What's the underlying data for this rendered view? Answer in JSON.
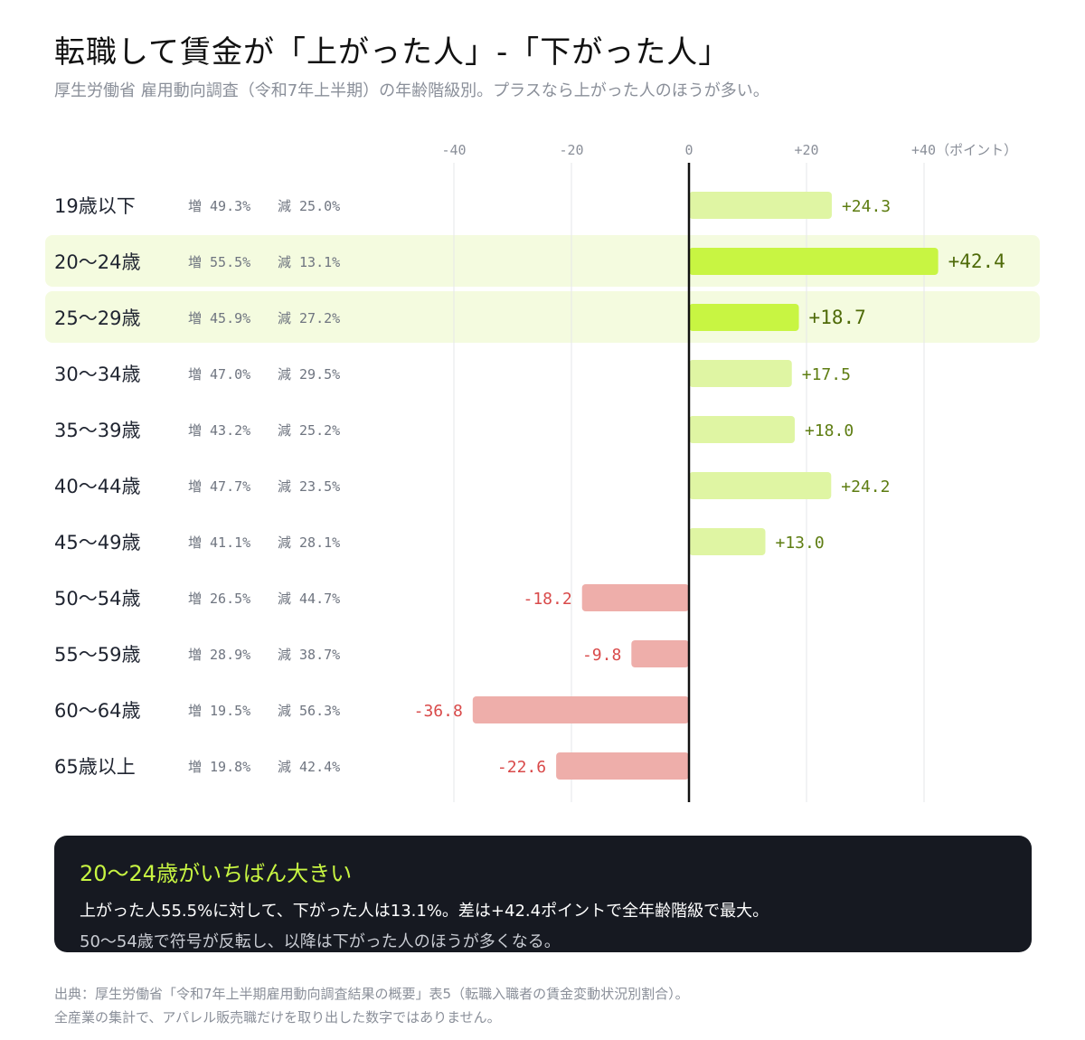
{
  "title": "転職して賃金が「上がった人」-「下がった人」",
  "subtitle": "厚生労働省 雇用動向調査（令和7年上半期）の年齢階級別。プラスなら上がった人のほうが多い。",
  "increase_prefix": "増",
  "decrease_prefix": "減",
  "chart_data": {
    "type": "bar",
    "orientation": "horizontal",
    "categories": [
      "19歳以下",
      "20〜24歳",
      "25〜29歳",
      "30〜34歳",
      "35〜39歳",
      "40〜44歳",
      "45〜49歳",
      "50〜54歳",
      "55〜59歳",
      "60〜64歳",
      "65歳以上"
    ],
    "values": [
      24.3,
      42.4,
      18.7,
      17.5,
      18.0,
      24.2,
      13.0,
      -18.2,
      -9.8,
      -36.8,
      -22.6
    ],
    "value_labels": [
      "+24.3",
      "+42.4",
      "+18.7",
      "+17.5",
      "+18.0",
      "+24.2",
      "+13.0",
      "-18.2",
      "-9.8",
      "-36.8",
      "-22.6"
    ],
    "increase_pct": [
      "49.3%",
      "55.5%",
      "45.9%",
      "47.0%",
      "43.2%",
      "47.7%",
      "41.1%",
      "26.5%",
      "28.9%",
      "19.5%",
      "19.8%"
    ],
    "decrease_pct": [
      "25.0%",
      "13.1%",
      "27.2%",
      "29.5%",
      "25.2%",
      "23.5%",
      "28.1%",
      "44.7%",
      "38.7%",
      "56.3%",
      "42.4%"
    ],
    "highlighted": [
      false,
      true,
      true,
      false,
      false,
      false,
      false,
      false,
      false,
      false,
      false
    ],
    "xticks": [
      -40,
      -20,
      0,
      20,
      40
    ],
    "xtick_labels": [
      "-40",
      "-20",
      "0",
      "+20",
      "+40"
    ],
    "xunit": "（ポイント）",
    "xlim": [
      -40,
      40
    ],
    "grid": true,
    "colors": {
      "positive": "#dff5a3",
      "positive_highlight": "#c8f542",
      "negative": "#eeaeaa",
      "row_highlight": "#f4fbdf",
      "zero_line": "#111111",
      "grid": "#e6e7ea"
    }
  },
  "note": {
    "heading": "20〜24歳がいちばん大きい",
    "body": "上がった人55.5%に対して、下がった人は13.1%。差は+42.4ポイントで全年齢階級で最大。",
    "sub": "50〜54歳で符号が反転し、以降は下がった人のほうが多くなる。"
  },
  "footer": {
    "line1": "出典：厚生労働省「令和7年上半期雇用動向調査結果の概要」表5（転職入職者の賃金変動状況別割合）。",
    "line2": "全産業の集計で、アパレル販売職だけを取り出した数字ではありません。"
  }
}
